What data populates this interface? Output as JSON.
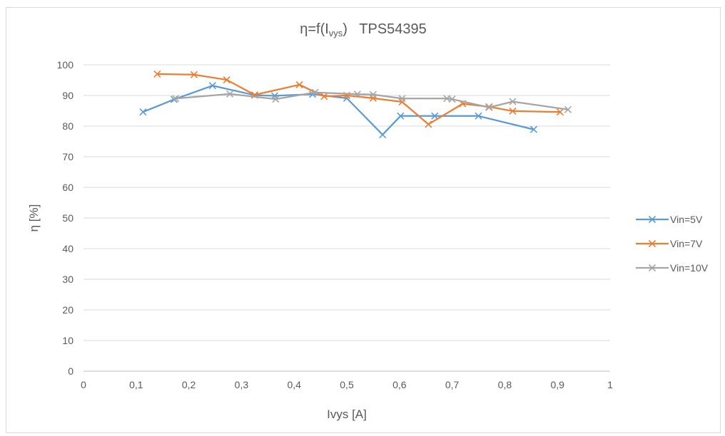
{
  "chart_data": {
    "type": "scatter",
    "title": "η=f(Ivys)",
    "title_sub": "vys",
    "title_suffix": "TPS54395",
    "xlabel": "Ivys [A]",
    "ylabel": "η [%]",
    "xlim": [
      0,
      1
    ],
    "ylim": [
      0,
      100
    ],
    "x_ticks": [
      "0",
      "0,1",
      "0,2",
      "0,3",
      "0,4",
      "0,5",
      "0,6",
      "0,7",
      "0,8",
      "0,9",
      "1"
    ],
    "x_tick_values": [
      0,
      0.1,
      0.2,
      0.3,
      0.4,
      0.5,
      0.6,
      0.7,
      0.8,
      0.9,
      1
    ],
    "y_ticks": [
      "0",
      "10",
      "20",
      "30",
      "40",
      "50",
      "60",
      "70",
      "80",
      "90",
      "100"
    ],
    "y_tick_values": [
      0,
      10,
      20,
      30,
      40,
      50,
      60,
      70,
      80,
      90,
      100
    ],
    "grid": "horizontal",
    "legend_position": "right",
    "series": [
      {
        "name": "Vin=5V",
        "color": "#5b9bd5",
        "points": [
          [
            0.113,
            84.6
          ],
          [
            0.172,
            88.7
          ],
          [
            0.245,
            93.2
          ],
          [
            0.325,
            90.1
          ],
          [
            0.363,
            89.9
          ],
          [
            0.435,
            90.4
          ],
          [
            0.5,
            89.1
          ],
          [
            0.568,
            77.2
          ],
          [
            0.602,
            83.3
          ],
          [
            0.667,
            83.3
          ],
          [
            0.75,
            83.3
          ],
          [
            0.855,
            78.9
          ]
        ]
      },
      {
        "name": "Vin=7V",
        "color": "#ed7d31",
        "points": [
          [
            0.14,
            97.0
          ],
          [
            0.21,
            96.8
          ],
          [
            0.272,
            95.1
          ],
          [
            0.325,
            90.2
          ],
          [
            0.41,
            93.5
          ],
          [
            0.457,
            89.7
          ],
          [
            0.5,
            90.0
          ],
          [
            0.55,
            89.1
          ],
          [
            0.605,
            87.9
          ],
          [
            0.655,
            80.6
          ],
          [
            0.72,
            87.3
          ],
          [
            0.77,
            86.3
          ],
          [
            0.815,
            84.9
          ],
          [
            0.905,
            84.6
          ]
        ]
      },
      {
        "name": "Vin=10V",
        "color": "#a5a5a5",
        "points": [
          [
            0.175,
            89.0
          ],
          [
            0.278,
            90.5
          ],
          [
            0.365,
            88.8
          ],
          [
            0.44,
            91.0
          ],
          [
            0.52,
            90.4
          ],
          [
            0.55,
            90.3
          ],
          [
            0.605,
            89.0
          ],
          [
            0.69,
            89.0
          ],
          [
            0.7,
            88.8
          ],
          [
            0.77,
            86.1
          ],
          [
            0.815,
            88.0
          ],
          [
            0.92,
            85.4
          ]
        ]
      }
    ]
  }
}
